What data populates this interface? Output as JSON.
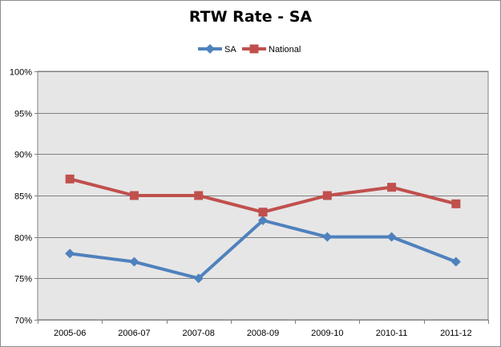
{
  "chart_data": {
    "type": "line",
    "title": "RTW Rate - SA",
    "xlabel": "",
    "ylabel": "",
    "categories": [
      "2005-06",
      "2006-07",
      "2007-08",
      "2008-09",
      "2009-10",
      "2010-11",
      "2011-12"
    ],
    "series": [
      {
        "name": "SA",
        "color": "#4f81bd",
        "marker": "diamond",
        "values": [
          78,
          77,
          75,
          82,
          80,
          80,
          77
        ]
      },
      {
        "name": "National",
        "color": "#c0504d",
        "marker": "square",
        "values": [
          87,
          85,
          85,
          83,
          85,
          86,
          84
        ]
      }
    ],
    "ylim": [
      70,
      100
    ],
    "yticks": [
      70,
      75,
      80,
      85,
      90,
      95,
      100
    ],
    "ytick_labels": [
      "70%",
      "75%",
      "80%",
      "85%",
      "90%",
      "95%",
      "100%"
    ],
    "grid": true,
    "legend": "top-center",
    "plot_background": "#e6e6e6"
  }
}
